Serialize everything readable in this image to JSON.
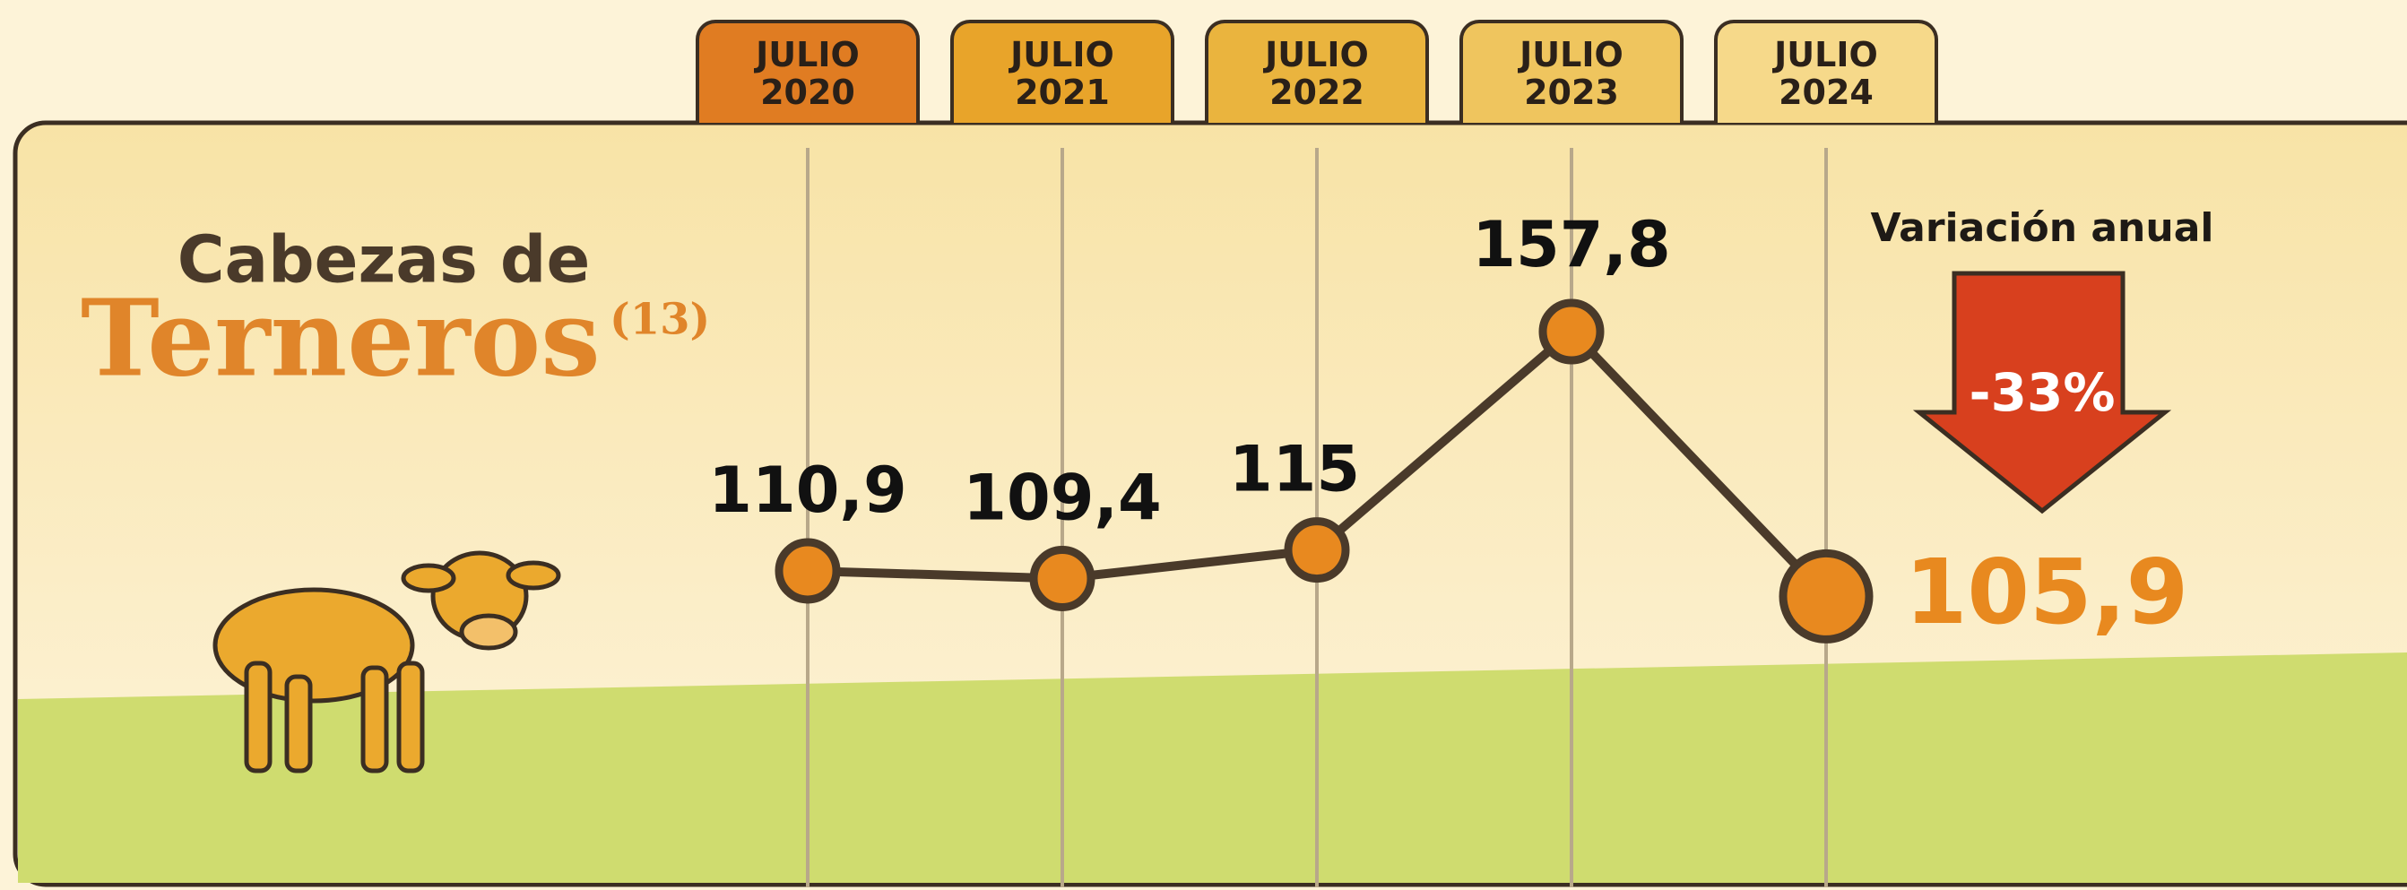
{
  "chart_data": {
    "type": "line",
    "title": "Cabezas de",
    "subtitle": "Terneros",
    "footnote": "(13)",
    "categories": [
      "JULIO 2020",
      "JULIO 2021",
      "JULIO 2022",
      "JULIO 2023",
      "JULIO 2024"
    ],
    "tab_colors": [
      "#e07c22",
      "#e8a42a",
      "#eab43e",
      "#efc55e",
      "#f6d98a"
    ],
    "values": [
      110.9,
      109.4,
      115,
      157.8,
      105.9
    ],
    "value_labels": [
      "110,9",
      "109,4",
      "115",
      "157,8",
      "105,9"
    ],
    "color": "#e8891f",
    "line_color": "#4a3a2a",
    "ylim": [
      100,
      160
    ],
    "annotation": {
      "label": "Variación anual",
      "change": "-33%"
    }
  }
}
